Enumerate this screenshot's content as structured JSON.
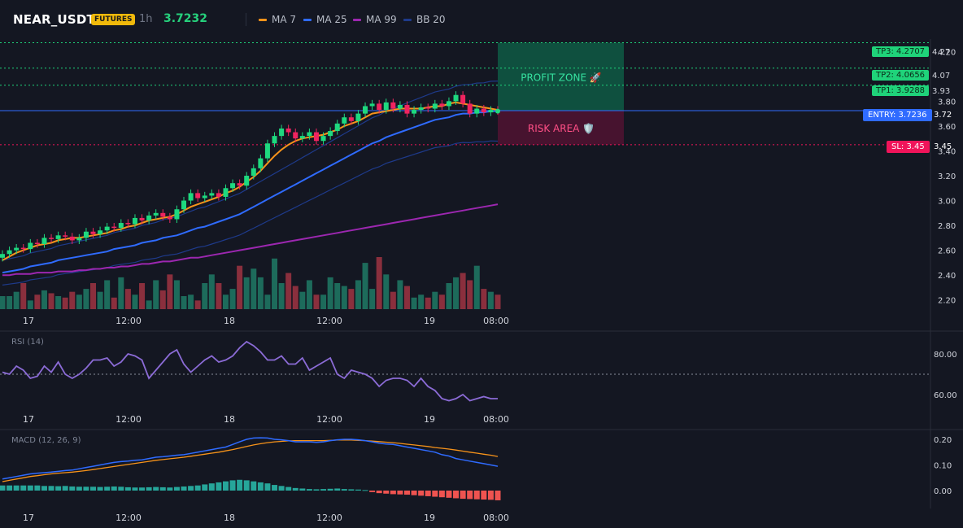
{
  "header": {
    "symbol": "NEAR_USDT",
    "badge": "FUTURES",
    "timeframe": "1h",
    "price": "3.7232",
    "legend": [
      {
        "label": "MA 7",
        "color": "#f7931a"
      },
      {
        "label": "MA 25",
        "color": "#2f6bff"
      },
      {
        "label": "MA 99",
        "color": "#9c27b0"
      },
      {
        "label": "BB 20",
        "color": "#1e3a8a"
      }
    ]
  },
  "levels": {
    "tp3": {
      "tag": "TP3: 4.2707",
      "axis": "4.27"
    },
    "tp2": {
      "tag": "TP2: 4.0656",
      "axis": "4.07"
    },
    "tp1": {
      "tag": "TP1: 3.9288",
      "axis": "3.93"
    },
    "entry": {
      "tag": "ENTRY: 3.7236",
      "axis": "3.72"
    },
    "sl": {
      "tag": "SL: 3.45",
      "axis": "3.45"
    }
  },
  "zones": {
    "profit": "PROFIT ZONE 🚀",
    "risk": "RISK AREA 🛡️"
  },
  "rsi_label": "RSI (14)",
  "macd_label": "MACD (12, 26, 9)",
  "chart_data": [
    {
      "type": "line",
      "title": "",
      "x_ticks": [
        "17",
        "12:00",
        "18",
        "12:00",
        "19",
        "08:00"
      ],
      "y_ticks": [
        "4.20",
        "3.80",
        "3.60",
        "3.40",
        "3.20",
        "3.00",
        "2.80",
        "2.60",
        "2.40",
        "2.20"
      ],
      "ylim": [
        2.1,
        4.3
      ],
      "close": [
        2.57,
        2.6,
        2.62,
        2.61,
        2.66,
        2.65,
        2.7,
        2.69,
        2.72,
        2.71,
        2.68,
        2.7,
        2.75,
        2.73,
        2.76,
        2.79,
        2.78,
        2.82,
        2.81,
        2.86,
        2.84,
        2.88,
        2.9,
        2.87,
        2.85,
        2.93,
        3.0,
        3.06,
        3.02,
        3.04,
        3.06,
        3.03,
        3.1,
        3.14,
        3.12,
        3.2,
        3.26,
        3.34,
        3.46,
        3.52,
        3.58,
        3.55,
        3.5,
        3.52,
        3.55,
        3.48,
        3.52,
        3.56,
        3.62,
        3.67,
        3.64,
        3.7,
        3.76,
        3.78,
        3.73,
        3.79,
        3.74,
        3.77,
        3.7,
        3.73,
        3.75,
        3.74,
        3.78,
        3.76,
        3.8,
        3.85,
        3.78,
        3.7,
        3.74,
        3.71,
        3.73,
        3.72
      ],
      "series": [
        {
          "name": "MA 7",
          "values": [
            2.52,
            2.55,
            2.58,
            2.6,
            2.62,
            2.64,
            2.65,
            2.66,
            2.68,
            2.69,
            2.7,
            2.7,
            2.71,
            2.72,
            2.73,
            2.74,
            2.76,
            2.77,
            2.79,
            2.8,
            2.82,
            2.84,
            2.85,
            2.86,
            2.87,
            2.89,
            2.92,
            2.95,
            2.97,
            2.99,
            3.01,
            3.03,
            3.06,
            3.08,
            3.11,
            3.15,
            3.19,
            3.24,
            3.3,
            3.36,
            3.41,
            3.45,
            3.48,
            3.5,
            3.51,
            3.52,
            3.53,
            3.55,
            3.57,
            3.6,
            3.62,
            3.64,
            3.67,
            3.7,
            3.71,
            3.72,
            3.73,
            3.74,
            3.74,
            3.74,
            3.74,
            3.75,
            3.76,
            3.76,
            3.78,
            3.79,
            3.78,
            3.77,
            3.76,
            3.75,
            3.74,
            3.73
          ]
        },
        {
          "name": "MA 25",
          "values": [
            2.42,
            2.43,
            2.44,
            2.45,
            2.47,
            2.48,
            2.49,
            2.5,
            2.52,
            2.53,
            2.54,
            2.55,
            2.56,
            2.57,
            2.58,
            2.59,
            2.61,
            2.62,
            2.63,
            2.64,
            2.66,
            2.67,
            2.68,
            2.7,
            2.71,
            2.72,
            2.74,
            2.76,
            2.78,
            2.79,
            2.81,
            2.83,
            2.85,
            2.87,
            2.89,
            2.92,
            2.95,
            2.98,
            3.01,
            3.04,
            3.07,
            3.1,
            3.13,
            3.16,
            3.19,
            3.22,
            3.25,
            3.28,
            3.31,
            3.34,
            3.37,
            3.4,
            3.43,
            3.46,
            3.48,
            3.51,
            3.53,
            3.55,
            3.57,
            3.59,
            3.61,
            3.63,
            3.65,
            3.66,
            3.67,
            3.69,
            3.7,
            3.7,
            3.71,
            3.71,
            3.72,
            3.72
          ]
        },
        {
          "name": "MA 99",
          "values": [
            2.4,
            2.4,
            2.41,
            2.41,
            2.41,
            2.42,
            2.42,
            2.42,
            2.43,
            2.43,
            2.43,
            2.44,
            2.44,
            2.45,
            2.45,
            2.46,
            2.46,
            2.47,
            2.47,
            2.48,
            2.49,
            2.49,
            2.5,
            2.51,
            2.51,
            2.52,
            2.53,
            2.54,
            2.54,
            2.55,
            2.56,
            2.57,
            2.58,
            2.59,
            2.6,
            2.61,
            2.62,
            2.63,
            2.64,
            2.65,
            2.66,
            2.67,
            2.68,
            2.69,
            2.7,
            2.71,
            2.72,
            2.73,
            2.74,
            2.75,
            2.76,
            2.77,
            2.78,
            2.79,
            2.8,
            2.81,
            2.82,
            2.83,
            2.84,
            2.85,
            2.86,
            2.87,
            2.88,
            2.89,
            2.9,
            2.91,
            2.92,
            2.93,
            2.94,
            2.95,
            2.96,
            2.97
          ]
        }
      ],
      "volume": [
        9,
        9,
        12,
        18,
        6,
        10,
        13,
        11,
        9,
        8,
        12,
        10,
        14,
        18,
        12,
        20,
        8,
        22,
        14,
        10,
        18,
        6,
        20,
        13,
        24,
        20,
        9,
        10,
        6,
        18,
        24,
        18,
        10,
        14,
        30,
        22,
        28,
        22,
        10,
        35,
        18,
        25,
        16,
        12,
        20,
        10,
        10,
        22,
        18,
        16,
        14,
        20,
        32,
        14,
        36,
        24,
        12,
        20,
        16,
        8,
        10,
        8,
        12,
        10,
        18,
        22,
        25,
        20,
        30,
        14,
        12,
        10
      ]
    },
    {
      "type": "line",
      "title": "RSI (14)",
      "x_ticks": [
        "17",
        "12:00",
        "18",
        "12:00",
        "19",
        "08:00"
      ],
      "y_ticks": [
        "80.00",
        "60.00"
      ],
      "ylim": [
        52,
        90
      ],
      "series": [
        {
          "name": "RSI (14)",
          "values": [
            71,
            70,
            74,
            72,
            68,
            69,
            74,
            71,
            76,
            70,
            68,
            70,
            73,
            77,
            77,
            78,
            74,
            76,
            80,
            79,
            77,
            68,
            72,
            76,
            80,
            82,
            75,
            71,
            74,
            77,
            79,
            76,
            77,
            79,
            83,
            86,
            84,
            81,
            77,
            77,
            79,
            75,
            75,
            78,
            72,
            74,
            76,
            78,
            70,
            68,
            72,
            71,
            70,
            68,
            64,
            67,
            68,
            68,
            67,
            64,
            68,
            64,
            62,
            58,
            57,
            58,
            60,
            57,
            58,
            59,
            58,
            58
          ]
        }
      ]
    },
    {
      "type": "line",
      "title": "MACD (12, 26, 9)",
      "x_ticks": [
        "17",
        "12:00",
        "18",
        "12:00",
        "19",
        "08:00"
      ],
      "y_ticks": [
        "0.20",
        "0.10",
        "0.00"
      ],
      "ylim": [
        -0.05,
        0.23
      ],
      "series": [
        {
          "name": "MACD",
          "values": [
            0.045,
            0.05,
            0.055,
            0.06,
            0.065,
            0.068,
            0.07,
            0.072,
            0.075,
            0.078,
            0.08,
            0.085,
            0.09,
            0.095,
            0.1,
            0.105,
            0.11,
            0.113,
            0.115,
            0.118,
            0.12,
            0.125,
            0.13,
            0.132,
            0.135,
            0.138,
            0.14,
            0.145,
            0.15,
            0.155,
            0.16,
            0.165,
            0.17,
            0.18,
            0.19,
            0.2,
            0.205,
            0.206,
            0.205,
            0.2,
            0.198,
            0.195,
            0.19,
            0.19,
            0.19,
            0.188,
            0.19,
            0.195,
            0.198,
            0.2,
            0.2,
            0.198,
            0.195,
            0.19,
            0.185,
            0.182,
            0.18,
            0.175,
            0.17,
            0.165,
            0.16,
            0.155,
            0.15,
            0.14,
            0.135,
            0.125,
            0.12,
            0.115,
            0.11,
            0.105,
            0.1,
            0.095
          ]
        },
        {
          "name": "Signal",
          "values": [
            0.035,
            0.04,
            0.045,
            0.05,
            0.055,
            0.058,
            0.062,
            0.065,
            0.068,
            0.07,
            0.072,
            0.075,
            0.078,
            0.082,
            0.086,
            0.09,
            0.094,
            0.098,
            0.102,
            0.106,
            0.11,
            0.114,
            0.118,
            0.121,
            0.124,
            0.127,
            0.13,
            0.134,
            0.138,
            0.142,
            0.146,
            0.15,
            0.155,
            0.16,
            0.166,
            0.172,
            0.178,
            0.183,
            0.187,
            0.19,
            0.192,
            0.194,
            0.195,
            0.195,
            0.195,
            0.195,
            0.195,
            0.196,
            0.197,
            0.197,
            0.197,
            0.196,
            0.195,
            0.193,
            0.191,
            0.189,
            0.187,
            0.184,
            0.181,
            0.178,
            0.175,
            0.172,
            0.168,
            0.165,
            0.162,
            0.158,
            0.154,
            0.15,
            0.146,
            0.142,
            0.138,
            0.133
          ]
        },
        {
          "name": "Histogram",
          "values": [
            0.02,
            0.02,
            0.02,
            0.02,
            0.02,
            0.02,
            0.018,
            0.018,
            0.017,
            0.018,
            0.016,
            0.015,
            0.015,
            0.015,
            0.014,
            0.015,
            0.016,
            0.015,
            0.013,
            0.012,
            0.012,
            0.013,
            0.014,
            0.013,
            0.012,
            0.014,
            0.016,
            0.018,
            0.02,
            0.024,
            0.028,
            0.032,
            0.036,
            0.04,
            0.042,
            0.04,
            0.036,
            0.032,
            0.028,
            0.022,
            0.018,
            0.014,
            0.01,
            0.008,
            0.006,
            0.005,
            0.006,
            0.007,
            0.008,
            0.006,
            0.005,
            0.004,
            0.002,
            -0.006,
            -0.01,
            -0.012,
            -0.014,
            -0.015,
            -0.016,
            -0.018,
            -0.02,
            -0.022,
            -0.024,
            -0.026,
            -0.028,
            -0.03,
            -0.032,
            -0.033,
            -0.034,
            -0.035,
            -0.036,
            -0.038
          ]
        }
      ]
    }
  ]
}
